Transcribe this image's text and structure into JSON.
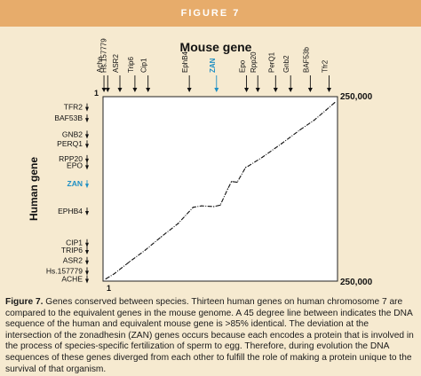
{
  "header": {
    "title": "FIGURE 7"
  },
  "chart_data": {
    "type": "line",
    "title": "Mouse gene",
    "xlabel": "Mouse gene",
    "ylabel": "Human gene",
    "x_start_label": "1",
    "x_end_label": "250,000",
    "y_start_label": "1",
    "y_end_label": "250,000",
    "corner_label": "1",
    "xlim": [
      1,
      250000
    ],
    "ylim": [
      1,
      250000
    ],
    "highlight_gene": "ZAN",
    "highlight_color": "#1e8fc4",
    "x_genes": [
      {
        "name": "Ache",
        "x": 1000
      },
      {
        "name": "Hs.157779",
        "x": 5000
      },
      {
        "name": "ASR2",
        "x": 18000
      },
      {
        "name": "Trip6",
        "x": 34000
      },
      {
        "name": "Cip1",
        "x": 48000
      },
      {
        "name": "EphB4",
        "x": 92000
      },
      {
        "name": "ZAN",
        "x": 121000
      },
      {
        "name": "Epo",
        "x": 153000
      },
      {
        "name": "Rpp20",
        "x": 165000
      },
      {
        "name": "PerQ1",
        "x": 184000
      },
      {
        "name": "Gnb2",
        "x": 200000
      },
      {
        "name": "BAF53b",
        "x": 221000
      },
      {
        "name": "Tfr2",
        "x": 241000
      }
    ],
    "y_genes": [
      {
        "name": "TFR2",
        "y": 236000
      },
      {
        "name": "BAF53B",
        "y": 221000
      },
      {
        "name": "GNB2",
        "y": 199000
      },
      {
        "name": "PERQ1",
        "y": 186000
      },
      {
        "name": "RPP20",
        "y": 166000
      },
      {
        "name": "EPO",
        "y": 157000
      },
      {
        "name": "ZAN",
        "y": 132000
      },
      {
        "name": "EPHB4",
        "y": 95000
      },
      {
        "name": "CIP1",
        "y": 52000
      },
      {
        "name": "TRIP6",
        "y": 42000
      },
      {
        "name": "ASR2",
        "y": 28000
      },
      {
        "name": "Hs.157779",
        "y": 14000
      },
      {
        "name": "ACHE",
        "y": 3000
      }
    ],
    "series": [
      {
        "x": [
          3000,
          12000,
          28000,
          45000,
          62000,
          80000,
          96000,
          105000,
          118000,
          125000,
          133000,
          137000,
          143000,
          152000,
          155000,
          170000,
          190000,
          210000,
          225000,
          238000,
          247000
        ],
        "y": [
          3000,
          10000,
          26000,
          42000,
          60000,
          78000,
          100000,
          102000,
          101000,
          103000,
          125000,
          135000,
          134000,
          154000,
          156000,
          168000,
          186000,
          205000,
          218000,
          232000,
          242000
        ]
      }
    ]
  },
  "caption": {
    "lead": "Figure 7.",
    "text": " Genes conserved between species. Thirteen human genes on human chromosome 7 are compared to the equivalent genes in the mouse genome. A 45 degree line between indicates the DNA sequence of the human and equivalent mouse gene is >85% identical. The deviation at the intersection of the zonadhesin (ZAN) genes occurs because each encodes a protein that is involved in the process of species-specific fertilization of sperm to egg. Therefore, during evolution the DNA sequences of these genes diverged from each other to fulfill the role of making a protein unique to the survival of that organism."
  }
}
